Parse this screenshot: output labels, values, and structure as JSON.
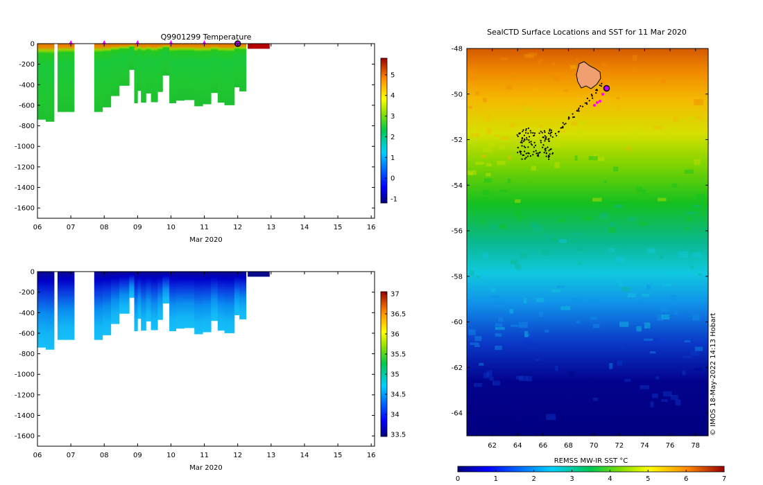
{
  "chart_data": [
    {
      "type": "heatmap",
      "title": "Q9901299  Temperature",
      "xlabel": "Mar 2020",
      "ylabel": "",
      "x_ticks": [
        "06",
        "07",
        "08",
        "09",
        "10",
        "11",
        "12",
        "13",
        "14",
        "15",
        "16"
      ],
      "x_range": [
        6,
        16.1
      ],
      "y_ticks": [
        "0",
        "-200",
        "-400",
        "-600",
        "-800",
        "-1000",
        "-1200",
        "-1400",
        "-1600"
      ],
      "y_range": [
        -1700,
        0
      ],
      "grid": false,
      "colorbar": {
        "range": [
          -1.2,
          5.8
        ],
        "ticks": [
          "-1",
          "0",
          "1",
          "2",
          "3",
          "4",
          "5"
        ]
      },
      "surface_markers": [
        7,
        8,
        9,
        10,
        11
      ],
      "current_marker": 12,
      "profiles": [
        {
          "x": [
            6.0,
            6.25
          ],
          "depth": 740
        },
        {
          "x": [
            6.25,
            6.5
          ],
          "depth": 760
        },
        {
          "x": [
            6.6,
            7.1
          ],
          "depth": 665
        },
        {
          "x": [
            7.7,
            7.95
          ],
          "depth": 665
        },
        {
          "x": [
            7.95,
            8.2
          ],
          "depth": 620
        },
        {
          "x": [
            8.2,
            8.45
          ],
          "depth": 510
        },
        {
          "x": [
            8.45,
            8.75
          ],
          "depth": 410
        },
        {
          "x": [
            8.75,
            8.9
          ],
          "depth": 255
        },
        {
          "x": [
            8.9,
            9.0
          ],
          "depth": 580
        },
        {
          "x": [
            9.0,
            9.1
          ],
          "depth": 460
        },
        {
          "x": [
            9.1,
            9.25
          ],
          "depth": 575
        },
        {
          "x": [
            9.25,
            9.4
          ],
          "depth": 485
        },
        {
          "x": [
            9.4,
            9.6
          ],
          "depth": 570
        },
        {
          "x": [
            9.6,
            9.75
          ],
          "depth": 470
        },
        {
          "x": [
            9.75,
            9.95
          ],
          "depth": 310
        },
        {
          "x": [
            9.95,
            10.15
          ],
          "depth": 580
        },
        {
          "x": [
            10.15,
            10.4
          ],
          "depth": 555
        },
        {
          "x": [
            10.4,
            10.7
          ],
          "depth": 550
        },
        {
          "x": [
            10.7,
            10.95
          ],
          "depth": 610
        },
        {
          "x": [
            10.95,
            11.2
          ],
          "depth": 590
        },
        {
          "x": [
            11.2,
            11.4
          ],
          "depth": 480
        },
        {
          "x": [
            11.4,
            11.6
          ],
          "depth": 575
        },
        {
          "x": [
            11.6,
            11.9
          ],
          "depth": 600
        },
        {
          "x": [
            11.9,
            12.05
          ],
          "depth": 425
        },
        {
          "x": [
            12.05,
            12.25
          ],
          "depth": 465
        },
        {
          "x": [
            12.3,
            12.95
          ],
          "depth": 50
        }
      ]
    },
    {
      "type": "heatmap",
      "title": "",
      "xlabel": "Mar 2020",
      "ylabel": "",
      "x_ticks": [
        "06",
        "07",
        "08",
        "09",
        "10",
        "11",
        "12",
        "13",
        "14",
        "15",
        "16"
      ],
      "x_range": [
        6,
        16.1
      ],
      "y_ticks": [
        "0",
        "-200",
        "-400",
        "-600",
        "-800",
        "-1000",
        "-1200",
        "-1400",
        "-1600"
      ],
      "y_range": [
        -1700,
        0
      ],
      "grid": false,
      "colorbar": {
        "range": [
          33.45,
          37.05
        ],
        "ticks": [
          "33.5",
          "34",
          "34.5",
          "35",
          "35.5",
          "36",
          "36.5",
          "37"
        ]
      }
    },
    {
      "type": "heatmap",
      "title": "SealCTD Surface Locations and SST for 11 Mar 2020",
      "xlabel": "",
      "ylabel": "",
      "x_ticks": [
        "62",
        "64",
        "66",
        "68",
        "70",
        "72",
        "74",
        "76",
        "78"
      ],
      "x_range": [
        60,
        79
      ],
      "y_ticks": [
        "-48",
        "-50",
        "-52",
        "-54",
        "-56",
        "-58",
        "-60",
        "-62",
        "-64"
      ],
      "y_range": [
        -65,
        -48
      ],
      "grid": false,
      "colorbar": {
        "label": "REMSS MW-IR SST °C",
        "range": [
          0,
          7
        ],
        "ticks": [
          "0",
          "1",
          "2",
          "3",
          "4",
          "5",
          "6",
          "7"
        ],
        "orientation": "horizontal"
      },
      "current_position": {
        "lon": 71.0,
        "lat": -49.75
      },
      "credit": "© IMOS 18-May-2022 14:13 Hobart"
    }
  ]
}
